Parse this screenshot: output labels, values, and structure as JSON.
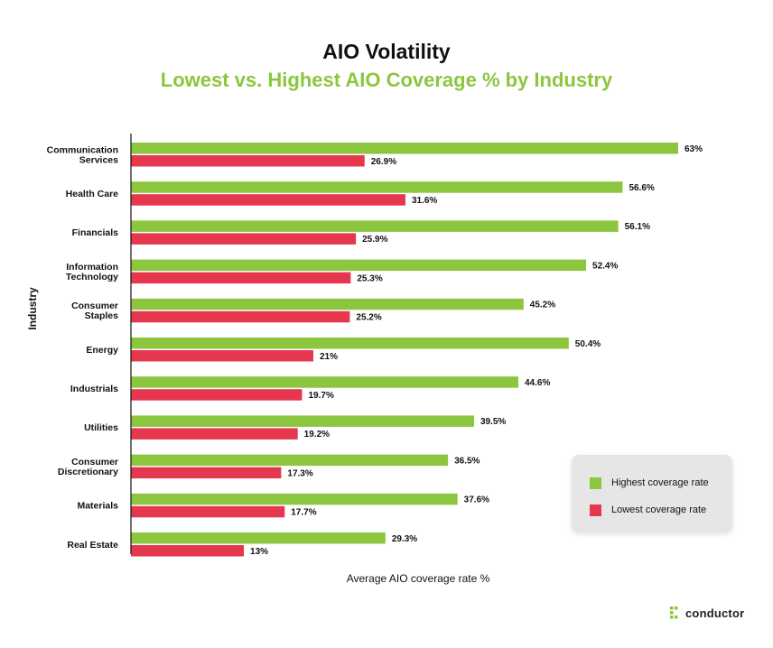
{
  "chart_data": {
    "type": "bar",
    "orientation": "horizontal",
    "title": "AIO Volatility",
    "subtitle": "Lowest vs. Highest AIO Coverage % by Industry",
    "xlabel": "Average AIO coverage rate %",
    "ylabel": "Industry",
    "categories": [
      [
        "Communication",
        "Services"
      ],
      [
        "Health Care"
      ],
      [
        "Financials"
      ],
      [
        "Information",
        "Technology"
      ],
      [
        "Consumer",
        "Staples"
      ],
      [
        "Energy"
      ],
      [
        "Industrials"
      ],
      [
        "Utilities"
      ],
      [
        "Consumer",
        "Discretionary"
      ],
      [
        "Materials"
      ],
      [
        "Real Estate"
      ]
    ],
    "series": [
      {
        "name": "Highest coverage rate",
        "color": "#8cc63f",
        "values": [
          63,
          56.6,
          56.1,
          52.4,
          45.2,
          50.4,
          44.6,
          39.5,
          36.5,
          37.6,
          29.3
        ],
        "labels": [
          "63%",
          "56.6%",
          "56.1%",
          "52.4%",
          "45.2%",
          "50.4%",
          "44.6%",
          "39.5%",
          "36.5%",
          "37.6%",
          "29.3%"
        ]
      },
      {
        "name": "Lowest coverage rate",
        "color": "#e5384f",
        "values": [
          26.9,
          31.6,
          25.9,
          25.3,
          25.2,
          21,
          19.7,
          19.2,
          17.3,
          17.7,
          13
        ],
        "labels": [
          "26.9%",
          "31.6%",
          "25.9%",
          "25.3%",
          "25.2%",
          "21%",
          "19.7%",
          "19.2%",
          "17.3%",
          "17.7%",
          "13%"
        ]
      }
    ],
    "xlim": [
      0,
      63
    ],
    "grid": false,
    "legend_position": "bottom-right"
  },
  "colors": {
    "title": "#111111",
    "subtitle": "#8cc63f",
    "axis": "#111111"
  },
  "logo": {
    "text": "conductor",
    "icon": "conductor-dots-icon",
    "color": "#8cc63f"
  }
}
